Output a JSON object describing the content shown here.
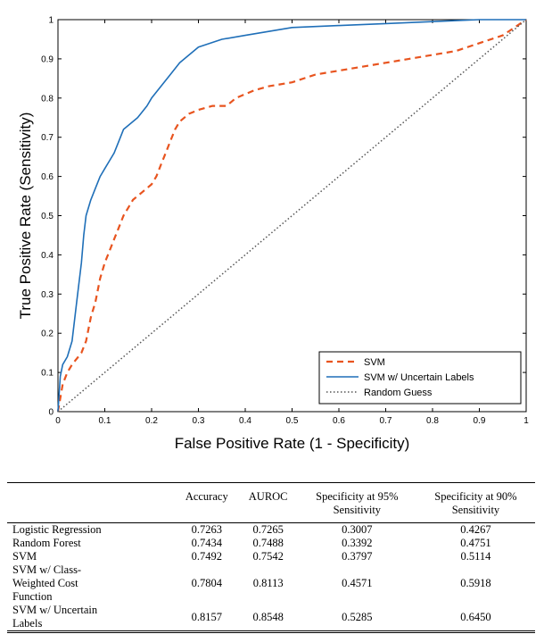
{
  "chart_data": {
    "type": "line",
    "xlabel": "False Positive Rate (1 - Specificity)",
    "ylabel": "True Positive Rate (Sensitivity)",
    "xlim": [
      0,
      1
    ],
    "ylim": [
      0,
      1
    ],
    "xticks": [
      "0",
      "0.1",
      "0.2",
      "0.3",
      "0.4",
      "0.5",
      "0.6",
      "0.7",
      "0.8",
      "0.9",
      "1"
    ],
    "yticks": [
      "0",
      "0.1",
      "0.2",
      "0.3",
      "0.4",
      "0.5",
      "0.6",
      "0.7",
      "0.8",
      "0.9",
      "1"
    ],
    "grid": false,
    "legend_position": "bottom-right",
    "series": [
      {
        "name": "SVM",
        "color": "#e8541f",
        "style": "dashed",
        "x": [
          0,
          0.01,
          0.02,
          0.03,
          0.05,
          0.06,
          0.07,
          0.08,
          0.09,
          0.1,
          0.11,
          0.12,
          0.13,
          0.14,
          0.15,
          0.16,
          0.18,
          0.2,
          0.21,
          0.22,
          0.23,
          0.24,
          0.25,
          0.26,
          0.28,
          0.3,
          0.33,
          0.36,
          0.38,
          0.4,
          0.42,
          0.45,
          0.5,
          0.55,
          0.6,
          0.65,
          0.7,
          0.75,
          0.8,
          0.85,
          0.9,
          0.95,
          1.0
        ],
        "y": [
          0,
          0.07,
          0.1,
          0.12,
          0.15,
          0.18,
          0.24,
          0.28,
          0.34,
          0.38,
          0.41,
          0.44,
          0.47,
          0.5,
          0.52,
          0.54,
          0.56,
          0.58,
          0.6,
          0.63,
          0.66,
          0.69,
          0.72,
          0.74,
          0.76,
          0.77,
          0.78,
          0.78,
          0.8,
          0.81,
          0.82,
          0.83,
          0.84,
          0.86,
          0.87,
          0.88,
          0.89,
          0.9,
          0.91,
          0.92,
          0.94,
          0.96,
          1.0
        ]
      },
      {
        "name": "SVM w/ Uncertain Labels",
        "color": "#1f6fb8",
        "style": "solid",
        "x": [
          0,
          0.005,
          0.01,
          0.02,
          0.03,
          0.04,
          0.05,
          0.055,
          0.06,
          0.07,
          0.08,
          0.09,
          0.1,
          0.11,
          0.12,
          0.13,
          0.14,
          0.15,
          0.17,
          0.19,
          0.2,
          0.22,
          0.24,
          0.26,
          0.28,
          0.3,
          0.35,
          0.4,
          0.45,
          0.5,
          0.6,
          0.7,
          0.8,
          0.9,
          1.0
        ],
        "y": [
          0,
          0.09,
          0.12,
          0.14,
          0.18,
          0.28,
          0.38,
          0.45,
          0.5,
          0.54,
          0.57,
          0.6,
          0.62,
          0.64,
          0.66,
          0.69,
          0.72,
          0.73,
          0.75,
          0.78,
          0.8,
          0.83,
          0.86,
          0.89,
          0.91,
          0.93,
          0.95,
          0.96,
          0.97,
          0.98,
          0.985,
          0.99,
          0.995,
          1.0,
          1.0
        ]
      },
      {
        "name": "Random Guess",
        "color": "#555555",
        "style": "dotted",
        "x": [
          0,
          1
        ],
        "y": [
          0,
          1
        ]
      }
    ]
  },
  "table": {
    "headers": [
      "",
      "Accuracy",
      "AUROC",
      "Specificity at 95% Sensitivity",
      "Specificity at 90% Sensitivity"
    ],
    "rows": [
      [
        "Logistic Regression",
        "0.7263",
        "0.7265",
        "0.3007",
        "0.4267"
      ],
      [
        "Random Forest",
        "0.7434",
        "0.7488",
        "0.3392",
        "0.4751"
      ],
      [
        "SVM",
        "0.7492",
        "0.7542",
        "0.3797",
        "0.5114"
      ],
      [
        "SVM w/ Class-Weighted Cost Function",
        "0.7804",
        "0.8113",
        "0.4571",
        "0.5918"
      ],
      [
        "SVM w/ Uncertain Labels",
        "0.8157",
        "0.8548",
        "0.5285",
        "0.6450"
      ]
    ]
  }
}
